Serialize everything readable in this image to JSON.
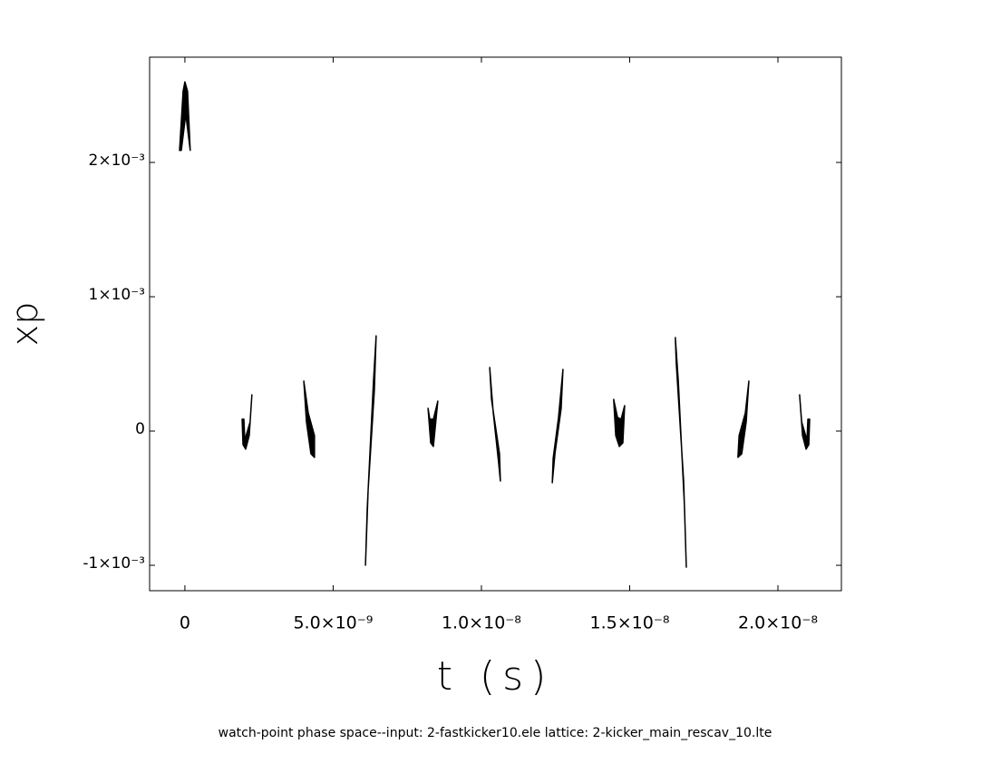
{
  "chart_data": {
    "type": "area-scatter",
    "title": "watch-point phase space--input: 2-fastkicker10.ele  lattice: 2-kicker_main_rescav_10.lte",
    "xlabel": "t (s)",
    "ylabel": "xp",
    "xlim": [
      -1.19e-09,
      2.214e-08
    ],
    "ylim": [
      -0.001189,
      0.002784
    ],
    "xticks": [
      0,
      {
        "value": 5e-09,
        "label": "5.0×10⁻⁹"
      },
      {
        "value": 1e-08,
        "label": "1.0×10⁻⁸"
      },
      {
        "value": 1.5e-08,
        "label": "1.5×10⁻⁸"
      },
      {
        "value": 2e-08,
        "label": "2.0×10⁻⁸"
      }
    ],
    "yticks": [
      {
        "value": -0.001,
        "label": "-1×10⁻³"
      },
      0,
      {
        "value": 0.001,
        "label": "1×10⁻³"
      },
      {
        "value": 0.002,
        "label": "2×10⁻³"
      }
    ],
    "series": [
      {
        "color": "#000000",
        "x": [
          -1.8e-10,
          -6e-11,
          0,
          9e-11,
          1.8e-10,
          3e-11,
          -1.2e-10
        ],
        "values": [
          0.00209,
          0.00253,
          0.0026,
          0.00253,
          0.00209,
          0.00236,
          0.00209
        ]
      },
      {
        "color": "#000000",
        "x": [
          1.93e-09,
          1.96e-09,
          2.05e-09,
          2.17e-09,
          2.26e-09,
          2.2e-09,
          2.02e-09,
          1.99e-09
        ],
        "values": [
          8.8e-05,
          -0.000101,
          -0.000135,
          -3.4e-05,
          0.00027,
          6.8e-05,
          -6.8e-05,
          8.8e-05
        ]
      },
      {
        "color": "#000000",
        "x": [
          4.01e-09,
          4.1e-09,
          4.25e-09,
          4.37e-09,
          4.37e-09,
          4.16e-09
        ],
        "values": [
          0.000372,
          6.8e-05,
          -0.000169,
          -0.000196,
          -3.4e-05,
          0.000135
        ]
      },
      {
        "color": "#000000",
        "x": [
          6.09e-09,
          6.15e-09,
          6.36e-09,
          6.45e-09,
          6.39e-09,
          6.18e-09
        ],
        "values": [
          -0.001,
          -0.000574,
          0.000372,
          0.000709,
          0.000304,
          -0.000439
        ]
      },
      {
        "color": "#000000",
        "x": [
          8.2e-09,
          8.29e-09,
          8.38e-09,
          8.53e-09,
          8.38e-09,
          8.26e-09
        ],
        "values": [
          0.000169,
          -8.8e-05,
          -0.000115,
          0.000223,
          8.8e-05,
          8.8e-05
        ]
      },
      {
        "color": "#000000",
        "x": [
          1.028e-08,
          1.04e-08,
          1.058e-08,
          1.064e-08,
          1.061e-08,
          1.034e-08
        ],
        "values": [
          0.000473,
          0.000135,
          -0.000236,
          -0.000372,
          -0.000169,
          0.000236
        ]
      },
      {
        "color": "#000000",
        "x": [
          1.239e-08,
          1.242e-08,
          1.26e-08,
          1.275e-08,
          1.269e-08,
          1.248e-08
        ],
        "values": [
          -0.000385,
          -0.000203,
          0.000101,
          0.000459,
          0.000169,
          -0.000169
        ]
      },
      {
        "color": "#000000",
        "x": [
          1.446e-08,
          1.459e-08,
          1.471e-08,
          1.483e-08,
          1.477e-08,
          1.465e-08,
          1.453e-08
        ],
        "values": [
          0.000236,
          0.000101,
          8.8e-05,
          0.000189,
          -8.8e-05,
          -0.000115,
          -3.4e-05
        ]
      },
      {
        "color": "#000000",
        "x": [
          1.654e-08,
          1.664e-08,
          1.685e-08,
          1.691e-08,
          1.682e-08,
          1.657e-08
        ],
        "values": [
          0.000696,
          0.000372,
          -0.000574,
          -0.001014,
          -0.000372,
          0.000507
        ]
      },
      {
        "color": "#000000",
        "x": [
          1.865e-08,
          1.878e-08,
          1.893e-08,
          1.902e-08,
          1.89e-08,
          1.869e-08
        ],
        "values": [
          -0.000196,
          -0.000169,
          6.8e-05,
          0.000372,
          0.000135,
          -3.4e-05
        ]
      },
      {
        "color": "#000000",
        "x": [
          2.073e-08,
          2.083e-08,
          2.095e-08,
          2.104e-08,
          2.107e-08,
          2.101e-08,
          2.098e-08,
          2.08e-08
        ],
        "values": [
          0.00027,
          -3.4e-05,
          -0.000135,
          -0.000101,
          8.8e-05,
          8.8e-05,
          -6.8e-05,
          6.8e-05
        ]
      }
    ]
  }
}
